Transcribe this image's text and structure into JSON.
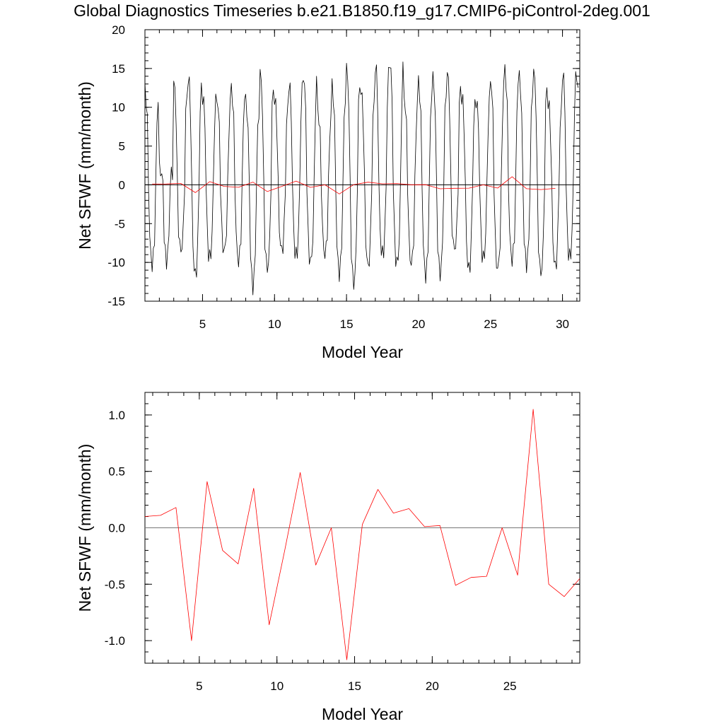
{
  "figure_title": "Global Diagnostics Timeseries b.e21.B1850.f19_g17.CMIP6-piControl-2deg.001",
  "colors": {
    "monthly": "#000000",
    "annual": "#ff0000",
    "zero_line": "#000000"
  },
  "chart_data": [
    {
      "type": "line",
      "xlabel": "Model Year",
      "ylabel": "Net SFWF (mm/month)",
      "xlim": [
        1.0,
        31.2
      ],
      "ylim": [
        -15,
        20
      ],
      "xticks": [
        5,
        10,
        15,
        20,
        25,
        30
      ],
      "yticks": [
        -15,
        -10,
        -5,
        0,
        5,
        10,
        15,
        20
      ],
      "ytick_labels": [
        "-15",
        "-10",
        "-5",
        "0",
        "5",
        "10",
        "15",
        "20"
      ],
      "xtick_labels": [
        "5",
        "10",
        "15",
        "20",
        "25",
        "30"
      ],
      "grid": false,
      "hline": 0,
      "series": [
        {
          "key": "monthly",
          "peaks": [
            12.2,
            2.0,
            13.2,
            13.9,
            11.5,
            11.0,
            12.3,
            10.5,
            14.4,
            11.0,
            13.2,
            14.1,
            9.5,
            12.5,
            14.9,
            12.0,
            15.6,
            16.0,
            11.1,
            13.0,
            13.6,
            14.5,
            11.4,
            11.0,
            13.5,
            14.6,
            13.6,
            14.6,
            10.6,
            14.7,
            13.8
          ],
          "troughs": [
            -10.2,
            -9.8,
            -8.5,
            -11.7,
            -9.5,
            -8.6,
            -9.8,
            -13.0,
            -10.8,
            -8.5,
            -9.2,
            -10.0,
            -9.0,
            -11.3,
            -12.7,
            -10.5,
            -9.0,
            -10.2,
            -10.2,
            -11.6,
            -11.4,
            -8.3,
            -11.0,
            -9.6,
            -10.9,
            -9.6,
            -10.2,
            -11.4,
            -10.6,
            -9.4
          ]
        },
        {
          "key": "annual",
          "x": [
            1.5,
            2.5,
            3.5,
            4.5,
            5.5,
            6.5,
            7.5,
            8.5,
            9.5,
            10.5,
            11.5,
            12.5,
            13.5,
            14.5,
            15.5,
            16.5,
            17.5,
            18.5,
            19.5,
            20.5,
            21.5,
            22.5,
            23.5,
            24.5,
            25.5,
            26.5,
            27.5,
            28.5,
            29.5
          ],
          "values": [
            0.1,
            0.11,
            0.18,
            -1.0,
            0.41,
            -0.2,
            -0.32,
            0.35,
            -0.86,
            -0.2,
            0.49,
            -0.33,
            0.0,
            -1.17,
            0.03,
            0.34,
            0.13,
            0.17,
            0.01,
            0.02,
            -0.51,
            -0.44,
            -0.43,
            0.0,
            -0.42,
            1.05,
            -0.5,
            -0.61,
            -0.45
          ]
        }
      ]
    },
    {
      "type": "line",
      "xlabel": "Model Year",
      "ylabel": "Net SFWF (mm/month)",
      "xlim": [
        1.5,
        29.5
      ],
      "ylim": [
        -1.2,
        1.2
      ],
      "xticks": [
        5,
        10,
        15,
        20,
        25
      ],
      "yticks": [
        -1.0,
        -0.5,
        0.0,
        0.5,
        1.0
      ],
      "ytick_labels": [
        "-1.0",
        "-0.5",
        "0.0",
        "0.5",
        "1.0"
      ],
      "xtick_labels": [
        "5",
        "10",
        "15",
        "20",
        "25"
      ],
      "grid": false,
      "hline": 0,
      "series": [
        {
          "key": "annual",
          "x": [
            1.5,
            2.5,
            3.5,
            4.5,
            5.5,
            6.5,
            7.5,
            8.5,
            9.5,
            10.5,
            11.5,
            12.5,
            13.5,
            14.5,
            15.5,
            16.5,
            17.5,
            18.5,
            19.5,
            20.5,
            21.5,
            22.5,
            23.5,
            24.5,
            25.5,
            26.5,
            27.5,
            28.5,
            29.5
          ],
          "values": [
            0.1,
            0.11,
            0.18,
            -1.0,
            0.41,
            -0.2,
            -0.32,
            0.35,
            -0.86,
            -0.2,
            0.49,
            -0.33,
            0.0,
            -1.17,
            0.03,
            0.34,
            0.13,
            0.17,
            0.01,
            0.02,
            -0.51,
            -0.44,
            -0.43,
            0.0,
            -0.42,
            1.05,
            -0.5,
            -0.61,
            -0.45
          ]
        }
      ]
    }
  ]
}
